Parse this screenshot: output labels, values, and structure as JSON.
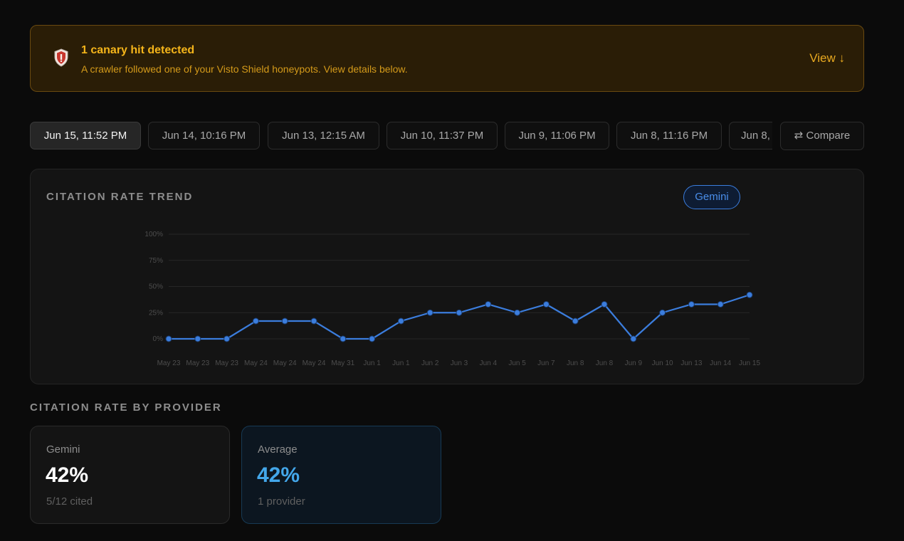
{
  "alert": {
    "title": "1 canary hit detected",
    "description": "A crawler followed one of your Visto Shield honeypots. View details below.",
    "action": "View ↓",
    "icon": "shield-icon"
  },
  "runs": [
    {
      "label": "Jun 15, 11:52 PM",
      "active": true
    },
    {
      "label": "Jun 14, 10:16 PM",
      "active": false
    },
    {
      "label": "Jun 13, 12:15 AM",
      "active": false
    },
    {
      "label": "Jun 10, 11:37 PM",
      "active": false
    },
    {
      "label": "Jun 9, 11:06 PM",
      "active": false
    },
    {
      "label": "Jun 8, 11:16 PM",
      "active": false
    },
    {
      "label": "Jun 8,",
      "active": false
    }
  ],
  "compare_label": "⇄ Compare",
  "trend": {
    "title": "CITATION RATE TREND",
    "legend": "Gemini"
  },
  "chart_data": {
    "type": "line",
    "x": [
      "May 23",
      "May 23",
      "May 23",
      "May 24",
      "May 24",
      "May 24",
      "May 31",
      "Jun 1",
      "Jun 1",
      "Jun 2",
      "Jun 3",
      "Jun 4",
      "Jun 5",
      "Jun 7",
      "Jun 8",
      "Jun 8",
      "Jun 9",
      "Jun 10",
      "Jun 13",
      "Jun 14",
      "Jun 15"
    ],
    "series": [
      {
        "name": "Gemini",
        "color": "#3b7ddd",
        "values": [
          0,
          0,
          0,
          17,
          17,
          17,
          0,
          0,
          17,
          25,
          25,
          33,
          25,
          33,
          17,
          33,
          0,
          25,
          33,
          33,
          42
        ]
      }
    ],
    "y_ticks": [
      "0%",
      "25%",
      "50%",
      "75%",
      "100%"
    ],
    "ylim": [
      0,
      100
    ],
    "grid": true
  },
  "providers": {
    "title": "CITATION RATE BY PROVIDER",
    "cards": [
      {
        "name": "Gemini",
        "value": "42%",
        "sub": "5/12 cited"
      },
      {
        "name": "Average",
        "value": "42%",
        "sub": "1 provider"
      }
    ]
  },
  "colors": {
    "accent": "#3b7ddd",
    "warning": "#f5b51a",
    "average_value": "#43a7ea"
  }
}
